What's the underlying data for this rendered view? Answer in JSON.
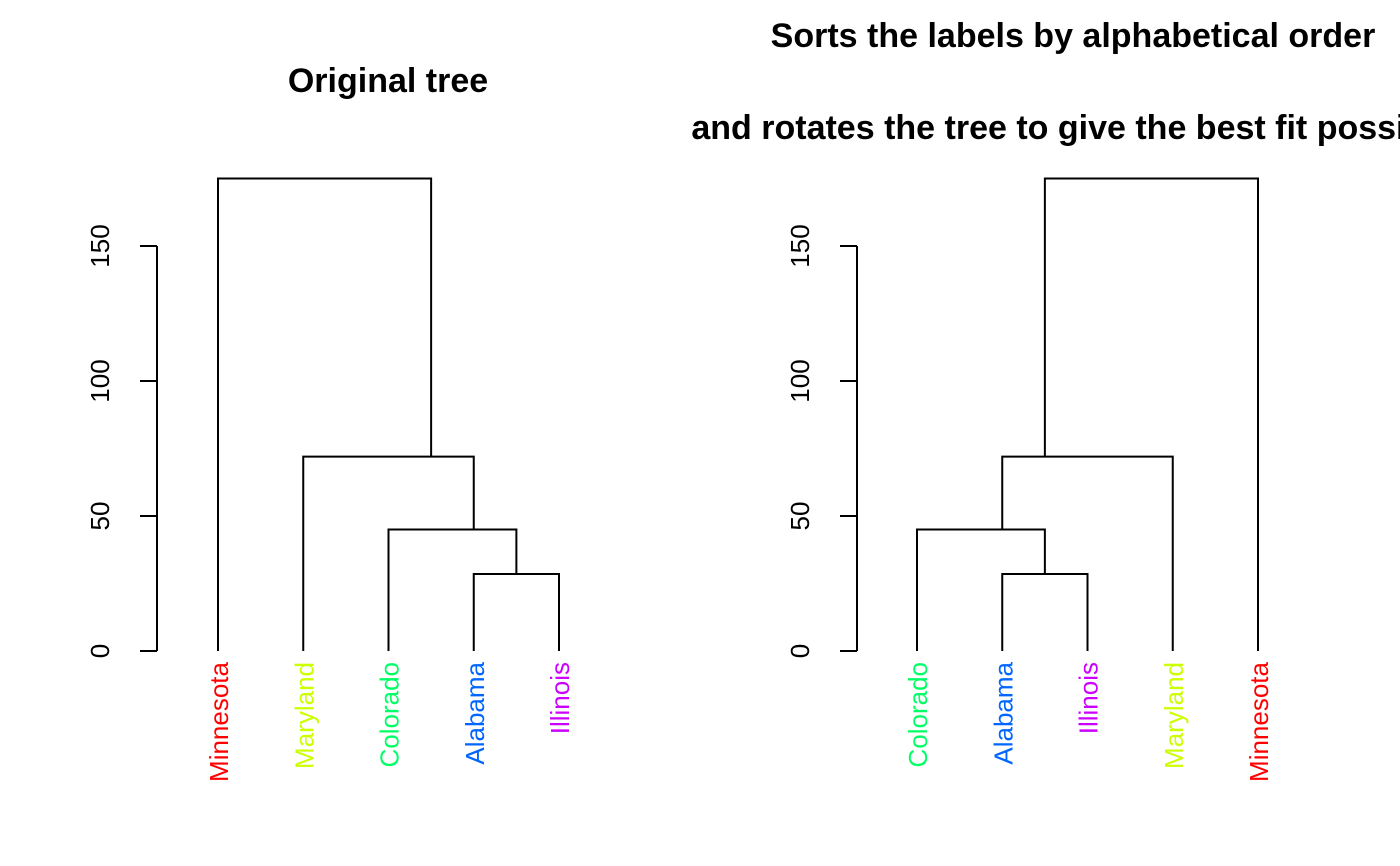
{
  "chart_data": [
    {
      "type": "dendrogram",
      "title": "Original tree",
      "ylim": [
        0,
        175
      ],
      "yticks": [
        0,
        50,
        100,
        150
      ],
      "leaves": [
        {
          "label": "Minnesota",
          "color": "#FF0000"
        },
        {
          "label": "Maryland",
          "color": "#CCFF00"
        },
        {
          "label": "Colorado",
          "color": "#00FF66"
        },
        {
          "label": "Alabama",
          "color": "#0066FF"
        },
        {
          "label": "Illinois",
          "color": "#CC00FF"
        }
      ],
      "merges": [
        {
          "left": [
            3
          ],
          "right": [
            4
          ],
          "height": 28.5
        },
        {
          "left": [
            2
          ],
          "right": [
            3,
            4
          ],
          "height": 45
        },
        {
          "left": [
            1
          ],
          "right": [
            2,
            3,
            4
          ],
          "height": 72
        },
        {
          "left": [
            0
          ],
          "right": [
            1,
            2,
            3,
            4
          ],
          "height": 175
        }
      ]
    },
    {
      "type": "dendrogram",
      "title_lines": [
        "Sorts the labels by alphabetical order",
        "and rotates the tree to give the best fit possible"
      ],
      "ylim": [
        0,
        175
      ],
      "yticks": [
        0,
        50,
        100,
        150
      ],
      "leaves": [
        {
          "label": "Colorado",
          "color": "#00FF66"
        },
        {
          "label": "Alabama",
          "color": "#0066FF"
        },
        {
          "label": "Illinois",
          "color": "#CC00FF"
        },
        {
          "label": "Maryland",
          "color": "#CCFF00"
        },
        {
          "label": "Minnesota",
          "color": "#FF0000"
        }
      ],
      "merges": [
        {
          "left": [
            1
          ],
          "right": [
            2
          ],
          "height": 28.5
        },
        {
          "left": [
            0
          ],
          "right": [
            1,
            2
          ],
          "height": 45
        },
        {
          "left": [
            0,
            1,
            2
          ],
          "right": [
            3
          ],
          "height": 72
        },
        {
          "left": [
            0,
            1,
            2,
            3
          ],
          "right": [
            4
          ],
          "height": 175
        }
      ]
    }
  ]
}
